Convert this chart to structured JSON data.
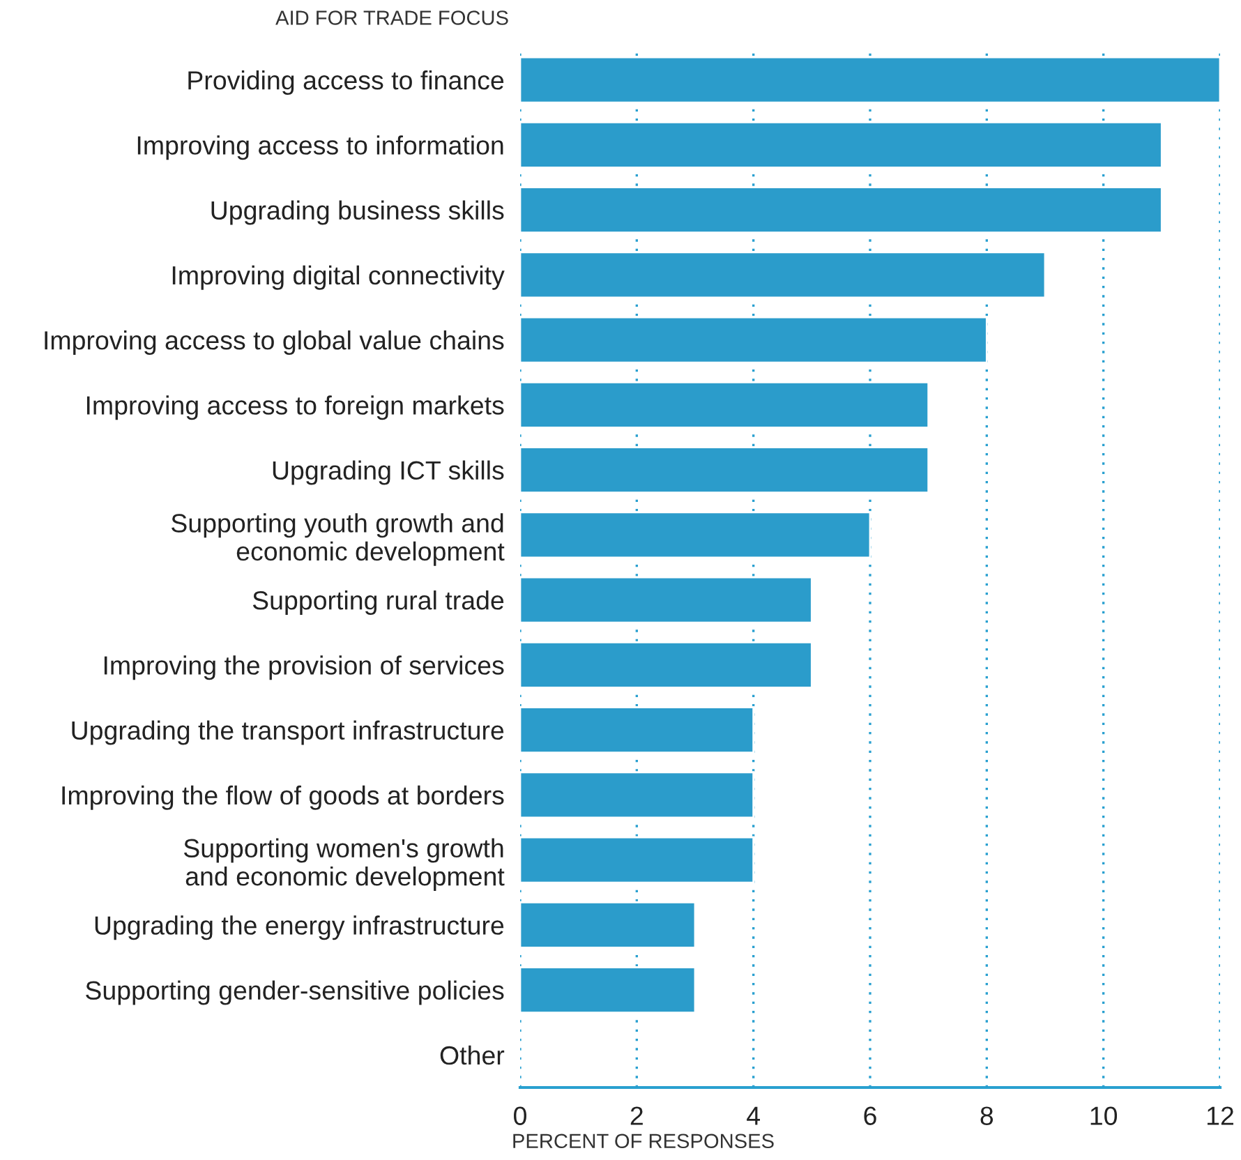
{
  "chart_data": {
    "type": "bar",
    "orientation": "horizontal",
    "ylabel": "AID FOR TRADE FOCUS",
    "xlabel": "PERCENT OF RESPONSES",
    "categories": [
      "Providing access to finance",
      "Improving access to information",
      "Upgrading business skills",
      "Improving digital connectivity",
      "Improving access to global value chains",
      "Improving access to foreign markets",
      "Upgrading ICT skills",
      "Supporting youth growth and\neconomic development",
      "Supporting rural trade",
      "Improving the provision of services",
      "Upgrading the transport infrastructure",
      "Improving the flow of goods at borders",
      "Supporting women's growth\nand economic development",
      "Upgrading the energy infrastructure",
      "Supporting gender-sensitive policies",
      "Other"
    ],
    "values": [
      12,
      11,
      11,
      9,
      8,
      7,
      7,
      6,
      5,
      5,
      4,
      4,
      4,
      3,
      3,
      null
    ],
    "color": "#2b9ccb",
    "xlim": [
      0,
      12
    ],
    "xticks": [
      0,
      2,
      4,
      6,
      8,
      10,
      12
    ],
    "grid": "x"
  }
}
